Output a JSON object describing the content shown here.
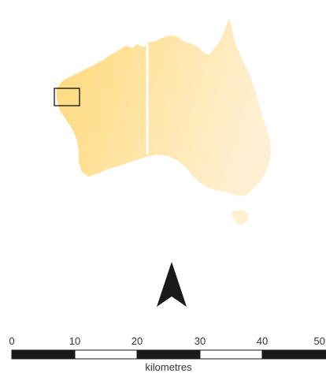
{
  "map": {
    "land_color_west": "#ffd97a",
    "land_color_east": "#fff0d2",
    "divider_color": "#ffffff",
    "outline_color": "#000000",
    "north_arrow_color": "#1a1a1a"
  },
  "scale_bar": {
    "ticks": [
      "0",
      "10",
      "20",
      "30",
      "40",
      "50"
    ],
    "unit": "kilometres",
    "dark_color": "#1a1a1a",
    "light_color": "#ffffff"
  }
}
